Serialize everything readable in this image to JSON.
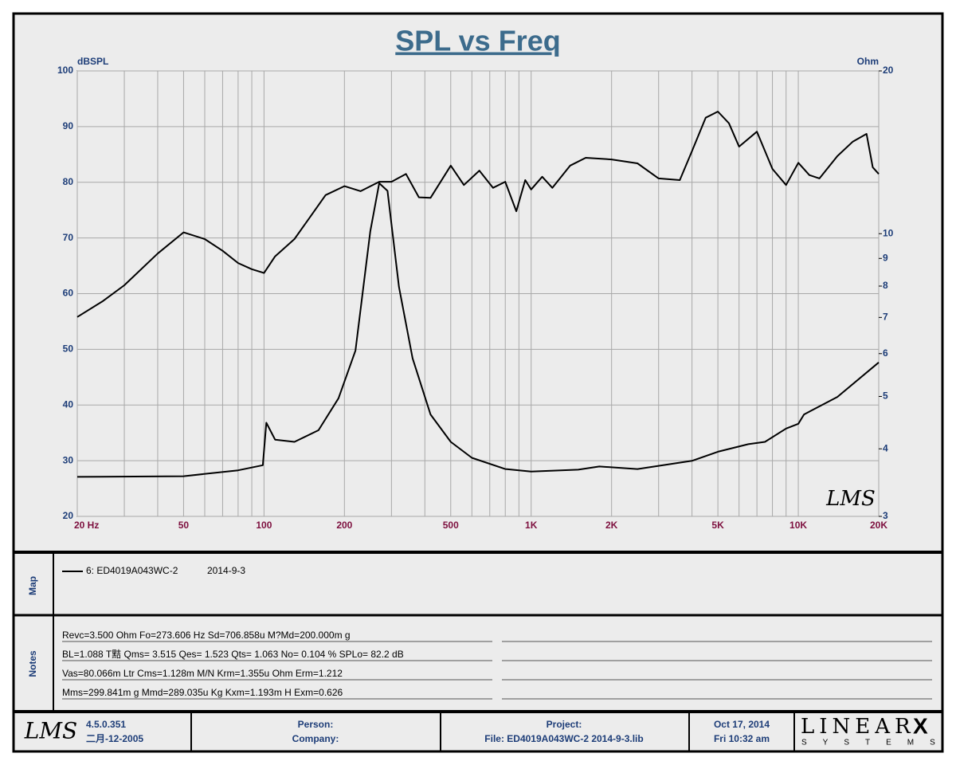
{
  "chart_data": {
    "type": "line",
    "title": "SPL vs Freq",
    "ylabel": "dBSPL",
    "y2label": "Ohm",
    "watermark": "LMS",
    "xscale": "log",
    "y2scale": "log",
    "grid": true,
    "xlim": [
      20,
      20000
    ],
    "ylim": [
      20,
      100
    ],
    "y2lim": [
      3,
      20
    ],
    "xticks": [
      {
        "value": 20,
        "label": "20  Hz"
      },
      50,
      100,
      200,
      500,
      {
        "value": 1000,
        "label": "1K"
      },
      {
        "value": 2000,
        "label": "2K"
      },
      {
        "value": 5000,
        "label": "5K"
      },
      {
        "value": 10000,
        "label": "10K"
      },
      {
        "value": 20000,
        "label": "20K"
      }
    ],
    "xgrid": [
      30,
      40,
      60,
      70,
      80,
      90,
      300,
      400,
      600,
      700,
      800,
      900,
      3000,
      4000,
      6000,
      7000,
      8000,
      9000
    ],
    "yticks": [
      20,
      30,
      40,
      50,
      60,
      70,
      80,
      90,
      100
    ],
    "y2ticks": [
      3,
      4,
      5,
      6,
      7,
      8,
      9,
      10,
      20
    ],
    "series": [
      {
        "name": "6: ED4019A043WC-2",
        "color": "#000000",
        "x": [
          20,
          25,
          30,
          40,
          50,
          60,
          70,
          80,
          90,
          100,
          110,
          130,
          150,
          170,
          200,
          230,
          270,
          300,
          340,
          380,
          420,
          500,
          560,
          640,
          720,
          800,
          880,
          950,
          1000,
          1100,
          1200,
          1400,
          1600,
          2000,
          2500,
          3000,
          3600,
          4000,
          4500,
          5000,
          5500,
          6000,
          7000,
          8000,
          9000,
          10000,
          11000,
          12000,
          14000,
          16000,
          18000,
          19000,
          20000
        ],
        "values": [
          55.8,
          58.7,
          61.5,
          67.2,
          71,
          69.8,
          67.7,
          65.5,
          64.4,
          63.7,
          66.7,
          69.8,
          74,
          77.7,
          79.3,
          78.4,
          80.1,
          80.1,
          81.5,
          77.3,
          77.2,
          83,
          79.5,
          82.1,
          79,
          80.1,
          74.8,
          80.4,
          78.7,
          81,
          79,
          83,
          84.4,
          84.1,
          83.4,
          80.7,
          80.4,
          85.6,
          91.6,
          92.7,
          90.6,
          86.4,
          89.1,
          82.4,
          79.5,
          83.5,
          81.3,
          80.7,
          84.7,
          87.3,
          88.7,
          82.7,
          81.5
        ]
      },
      {
        "color": "#000000",
        "axis": "y2",
        "x": [
          20,
          50,
          80,
          99,
          102,
          110,
          130,
          160,
          190,
          220,
          250,
          270,
          290,
          320,
          360,
          420,
          500,
          600,
          800,
          1000,
          1500,
          1800,
          2500,
          4000,
          5000,
          6500,
          7500,
          9000,
          10000,
          10500,
          14000,
          20000
        ],
        "values": [
          3.55,
          3.56,
          3.65,
          3.73,
          4.47,
          4.16,
          4.12,
          4.33,
          4.96,
          6.08,
          10.1,
          12.4,
          12,
          7.97,
          5.88,
          4.63,
          4.12,
          3.85,
          3.67,
          3.63,
          3.66,
          3.71,
          3.67,
          3.8,
          3.95,
          4.08,
          4.12,
          4.36,
          4.45,
          4.63,
          4.99,
          5.78
        ]
      }
    ]
  },
  "map": {
    "label": "Map",
    "date": "2014-9-3"
  },
  "notes": {
    "label": "Notes",
    "lines": [
      "Revc=3.500 Ohm  Fo=273.606 Hz  Sd=706.858u M?Md=200.000m g",
      "BL=1.088 T黠  Qms= 3.515  Qes= 1.523  Qts= 1.063  No= 0.104 %  SPLo= 82.2 dB",
      "Vas=80.066m Ltr  Cms=1.128m M/N  Krm=1.355u Ohm  Erm=1.212",
      "Mms=299.841m g  Mmd=289.035u Kg  Kxm=1.193m H  Exm=0.626"
    ]
  },
  "footer": {
    "logo": "LMS",
    "version": "4.5.0.351",
    "build_date": "二月-12-2005",
    "person": "Person:",
    "company": "Company:",
    "project": "Project:",
    "file": "File: ED4019A043WC-2    2014-9-3.lib",
    "date": "Oct 17, 2014",
    "time": "Fri 10:32 am",
    "brand": "LINEAR",
    "brand_mark": "X",
    "brand_sub": "SYSTEMS"
  }
}
